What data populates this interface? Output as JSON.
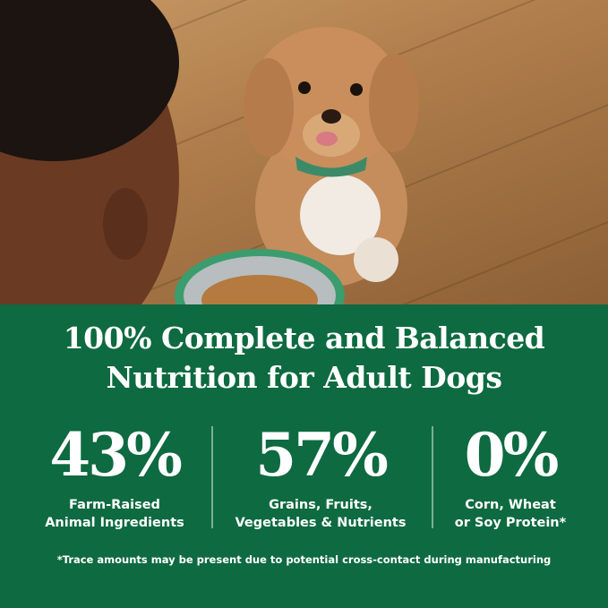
{
  "headline": {
    "line1": "100% Complete and Balanced",
    "line2": "Nutrition for Adult Dogs"
  },
  "stats": [
    {
      "value": "43%",
      "line1": "Farm-Raised",
      "line2": "Animal Ingredients"
    },
    {
      "value": "57%",
      "line1": "Grains, Fruits,",
      "line2": "Vegetables & Nutrients"
    },
    {
      "value": "0%",
      "line1": "Corn, Wheat",
      "line2": "or Soy Protein*"
    }
  ],
  "footnote": "*Trace amounts may be present due to potential cross-contact during manufacturing",
  "colors": {
    "panel": "#0e6a40",
    "text": "#ffffff"
  }
}
